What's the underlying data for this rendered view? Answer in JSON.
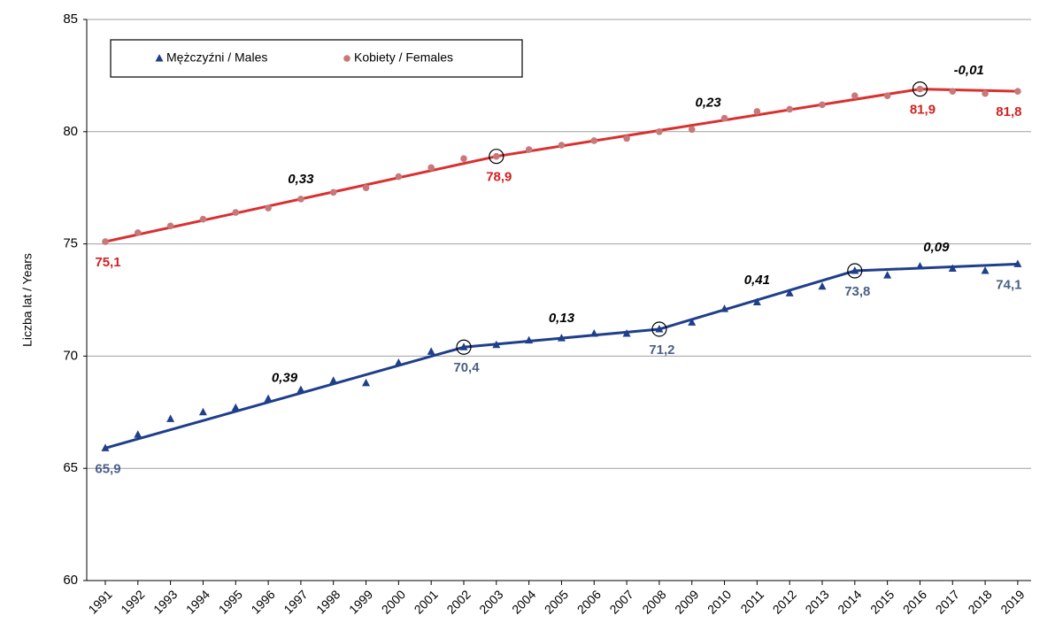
{
  "chart_data": {
    "type": "scatter",
    "ylabel": "Liczba lat / Years",
    "xlim": [
      1990.43,
      2019.41
    ],
    "ylim": [
      60,
      85
    ],
    "yticks": [
      60,
      65,
      70,
      75,
      80,
      85
    ],
    "xticks": [
      1991,
      1992,
      1993,
      1994,
      1995,
      1996,
      1997,
      1998,
      1999,
      2000,
      2001,
      2002,
      2003,
      2004,
      2005,
      2006,
      2007,
      2008,
      2009,
      2010,
      2011,
      2012,
      2013,
      2014,
      2015,
      2016,
      2017,
      2018,
      2019
    ],
    "grid": true,
    "legend": "top-left",
    "x": [
      1991,
      1992,
      1993,
      1994,
      1995,
      1996,
      1997,
      1998,
      1999,
      2000,
      2001,
      2002,
      2003,
      2004,
      2005,
      2006,
      2007,
      2008,
      2009,
      2010,
      2011,
      2012,
      2013,
      2014,
      2015,
      2016,
      2017,
      2018,
      2019
    ],
    "series": [
      {
        "name": "Mężczyźni / Males",
        "color": "#1f3f8a",
        "marker": "triangle",
        "values": [
          65.9,
          66.5,
          67.2,
          67.5,
          67.7,
          68.1,
          68.5,
          68.9,
          68.8,
          69.7,
          70.2,
          70.4,
          70.5,
          70.7,
          70.8,
          71.0,
          71.0,
          71.2,
          71.5,
          72.1,
          72.4,
          72.8,
          73.1,
          73.8,
          73.6,
          74.0,
          73.9,
          73.8,
          74.1
        ],
        "trend": {
          "x": [
            1991,
            2002,
            2008,
            2014,
            2019
          ],
          "values": [
            65.9,
            70.4,
            71.2,
            73.8,
            74.1
          ],
          "value_labels": [
            "65,9",
            "70,4",
            "71,2",
            "73,8",
            "74,1"
          ],
          "label_color": "#4a5f86",
          "circled": [
            false,
            true,
            true,
            true,
            false
          ],
          "slope_labels": [
            "0,39",
            "0,13",
            "0,41",
            "0,09"
          ]
        }
      },
      {
        "name": "Kobiety / Females",
        "color": "#d93030",
        "marker": "circle",
        "marker_color": "#c87878",
        "values": [
          75.1,
          75.5,
          75.8,
          76.1,
          76.4,
          76.6,
          77.0,
          77.3,
          77.5,
          78.0,
          78.4,
          78.8,
          78.9,
          79.2,
          79.4,
          79.6,
          79.7,
          80.0,
          80.1,
          80.6,
          80.9,
          81.0,
          81.2,
          81.6,
          81.6,
          81.9,
          81.8,
          81.7,
          81.8
        ],
        "trend": {
          "x": [
            1991,
            2003,
            2016,
            2019
          ],
          "values": [
            75.1,
            78.9,
            81.9,
            81.8
          ],
          "value_labels": [
            "75,1",
            "78,9",
            "81,9",
            "81,8"
          ],
          "label_color": "#d42020",
          "circled": [
            false,
            true,
            true,
            false
          ],
          "slope_labels": [
            "0,33",
            "0,23",
            "-0,01"
          ]
        }
      }
    ]
  }
}
